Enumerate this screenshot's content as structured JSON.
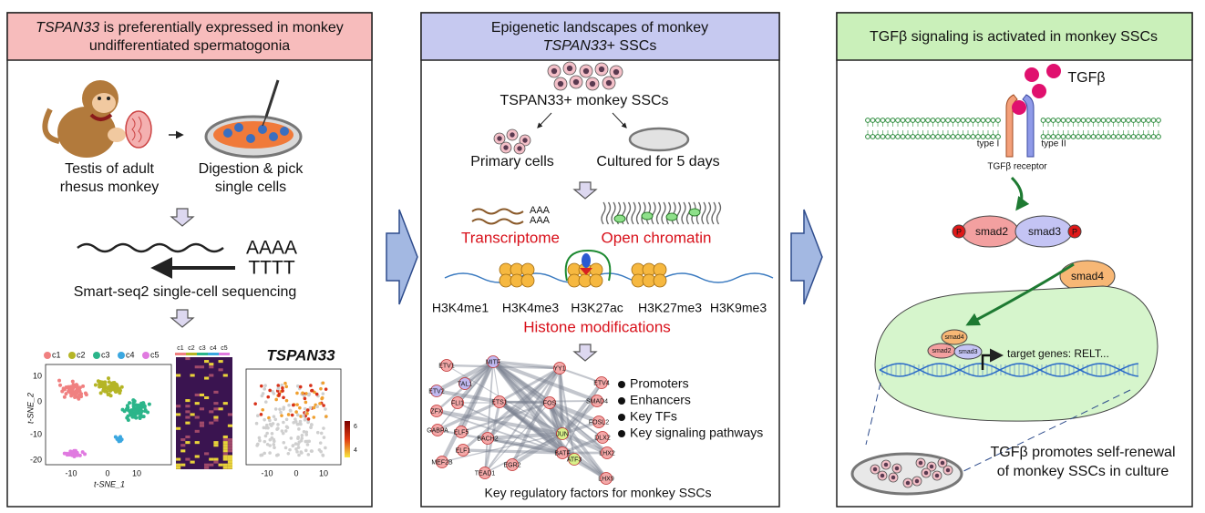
{
  "panel1": {
    "title_italic": "TSPAN33",
    "title_rest": " is preferentially expressed in monkey",
    "title_line2": "undifferentiated spermatogonia",
    "testis_label": [
      "Testis of adult",
      "rhesus monkey"
    ],
    "digestion_label": [
      "Digestion & pick",
      "single cells"
    ],
    "poly_a": "AAAA",
    "poly_t": "TTTT",
    "sequencing": "Smart-seq2 single-cell sequencing",
    "clusters": [
      "c1",
      "c2",
      "c3",
      "c4",
      "c5"
    ],
    "tsne_y_label": "t-SNE_2",
    "tsne_x_label": "t-SNE_1",
    "tsne_yticks": [
      10,
      0,
      -10,
      -20
    ],
    "tsne_xticks": [
      -10,
      0,
      10
    ],
    "heatmap_clusters": [
      "c1",
      "c2",
      "c3",
      "c4",
      "c5"
    ],
    "gene": "TSPAN33",
    "gene_xticks": [
      -10,
      0,
      10
    ],
    "colorbar_ticks": [
      6,
      4
    ]
  },
  "panel2": {
    "title_line1": "Epigenetic landscapes of monkey",
    "title_italic": "TSPAN33",
    "title_rest": "+ SSCs",
    "cells": "TSPAN33+ monkey SSCs",
    "primary": "Primary cells",
    "cultured": "Cultured for 5 days",
    "poly_a": [
      "AAA",
      "AAA"
    ],
    "transcriptome": "Transcriptome",
    "open_chromatin": "Open chromatin",
    "histone_marks": [
      "H3K4me1",
      "H3K4me3",
      "H3K27ac",
      "H3K27me3",
      "H3K9me3"
    ],
    "histone": "Histone modifications",
    "network": {
      "nodes": [
        "ETV1",
        "MITF",
        "YY1",
        "TAL1",
        "ETV2",
        "ETV4",
        "FLI1",
        "ETS1",
        "FOS",
        "SMAD4",
        "ZFX",
        "GABPA",
        "ELF5",
        "BACH2",
        "JUN",
        "FOSL2",
        "DLX2",
        "ELF1",
        "BATF",
        "ATF3",
        "LHX2",
        "MEF2B",
        "EGR2",
        "TEAD1",
        "LHX9"
      ]
    },
    "legend": [
      "Promoters",
      "Enhancers",
      "Key TFs",
      "Key signaling pathways"
    ],
    "footer": "Key regulatory factors for monkey SSCs"
  },
  "panel3": {
    "title": "TGFβ signaling is activated in monkey SSCs",
    "ligand": "TGFβ",
    "type1": "type I",
    "type2": "type II",
    "receptor": "TGFβ receptor",
    "phospho": [
      "P",
      "P"
    ],
    "smad2": "smad2",
    "smad3": "smad3",
    "smad4": "smad4",
    "nuclear_smads": [
      "smad4",
      "smad2",
      "smad3"
    ],
    "target": "target genes: RELT...",
    "conclusion": [
      "TGFβ promotes self-renewal",
      "of monkey SSCs in culture"
    ]
  }
}
